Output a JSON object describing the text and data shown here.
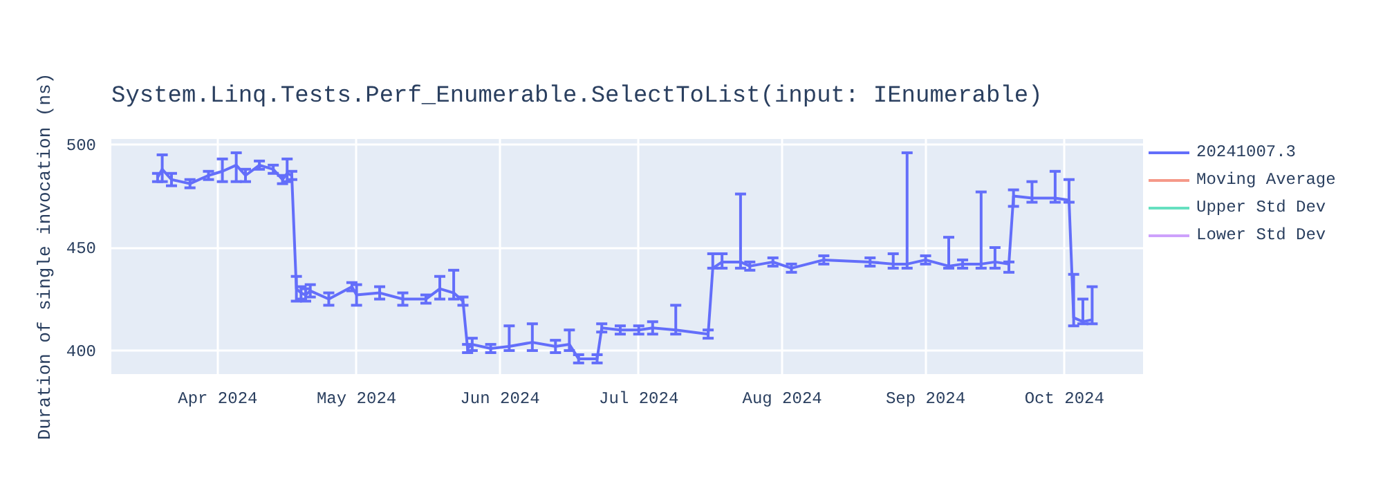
{
  "chart_data": {
    "type": "line",
    "title": "System.Linq.Tests.Perf_Enumerable.SelectToList(input: IEnumerable)",
    "ylabel": "Duration of single invocation (ns)",
    "xlim": [
      "2024-03-09",
      "2024-10-18"
    ],
    "ylim": [
      388.6,
      502.7
    ],
    "yticks": [
      400,
      450,
      500
    ],
    "xticks": [
      {
        "value": "2024-04-01",
        "label": "Apr 2024"
      },
      {
        "value": "2024-05-01",
        "label": "May 2024"
      },
      {
        "value": "2024-06-01",
        "label": "Jun 2024"
      },
      {
        "value": "2024-07-01",
        "label": "Jul 2024"
      },
      {
        "value": "2024-08-01",
        "label": "Aug 2024"
      },
      {
        "value": "2024-09-01",
        "label": "Sep 2024"
      },
      {
        "value": "2024-10-01",
        "label": "Oct 2024"
      }
    ],
    "grid": true,
    "legend": "right",
    "marker": "none",
    "line_style": "solid",
    "series": [
      {
        "name": "20241007.3",
        "color": "#636efa",
        "x": [
          "2024-03-19",
          "2024-03-20",
          "2024-03-22",
          "2024-03-26",
          "2024-03-30",
          "2024-04-02",
          "2024-04-05",
          "2024-04-07",
          "2024-04-10",
          "2024-04-13",
          "2024-04-15",
          "2024-04-16",
          "2024-04-17",
          "2024-04-18",
          "2024-04-19",
          "2024-04-20",
          "2024-04-21",
          "2024-04-25",
          "2024-04-30",
          "2024-05-01",
          "2024-05-06",
          "2024-05-11",
          "2024-05-16",
          "2024-05-19",
          "2024-05-22",
          "2024-05-24",
          "2024-05-25",
          "2024-05-26",
          "2024-05-30",
          "2024-06-03",
          "2024-06-08",
          "2024-06-13",
          "2024-06-16",
          "2024-06-18",
          "2024-06-22",
          "2024-06-23",
          "2024-06-27",
          "2024-07-01",
          "2024-07-04",
          "2024-07-09",
          "2024-07-16",
          "2024-07-17",
          "2024-07-19",
          "2024-07-23",
          "2024-07-25",
          "2024-07-30",
          "2024-08-03",
          "2024-08-10",
          "2024-08-20",
          "2024-08-25",
          "2024-08-28",
          "2024-09-01",
          "2024-09-06",
          "2024-09-09",
          "2024-09-13",
          "2024-09-16",
          "2024-09-19",
          "2024-09-20",
          "2024-09-24",
          "2024-09-29",
          "2024-10-02",
          "2024-10-03",
          "2024-10-05",
          "2024-10-07"
        ],
        "values": [
          484,
          488,
          483,
          481,
          485,
          487,
          490,
          485,
          490,
          488,
          483,
          486,
          485,
          430,
          428,
          427,
          429,
          425,
          431,
          427,
          428,
          425,
          425,
          430,
          428,
          424,
          401,
          403,
          401,
          402,
          404,
          402,
          403,
          396,
          396,
          411,
          410,
          410,
          411,
          410,
          408,
          440,
          443,
          443,
          441,
          443,
          440,
          444,
          443,
          442,
          442,
          444,
          441,
          442,
          442,
          443,
          442,
          475,
          474,
          474,
          473,
          416,
          414,
          415
        ],
        "errors": [
          2,
          [
            482,
            495
          ],
          3,
          2,
          2,
          [
            482,
            493
          ],
          [
            482,
            496
          ],
          3,
          2,
          2,
          2,
          [
            482,
            493
          ],
          2,
          6,
          3,
          3,
          3,
          3,
          2,
          5,
          3,
          3,
          2,
          [
            425,
            436
          ],
          [
            425,
            439
          ],
          2,
          2,
          3,
          2,
          [
            400,
            412
          ],
          [
            400,
            413
          ],
          3,
          [
            400,
            410
          ],
          2,
          2,
          2,
          2,
          2,
          3,
          [
            408,
            422
          ],
          2,
          [
            440,
            447
          ],
          [
            440,
            447
          ],
          [
            440,
            476
          ],
          2,
          2,
          2,
          2,
          2,
          [
            440,
            447
          ],
          [
            440,
            496
          ],
          2,
          [
            440,
            455
          ],
          2,
          [
            440,
            477
          ],
          [
            440,
            450
          ],
          [
            438,
            443
          ],
          [
            470,
            478
          ],
          [
            472,
            482
          ],
          [
            472,
            487
          ],
          [
            472,
            483
          ],
          [
            412,
            437
          ],
          [
            413,
            425
          ],
          [
            413,
            431
          ]
        ]
      },
      {
        "name": "Moving Average",
        "color": "#ef553b"
      },
      {
        "name": "Upper Std Dev",
        "color": "#00cc96"
      },
      {
        "name": "Lower Std Dev",
        "color": "#ab63fa"
      }
    ]
  }
}
